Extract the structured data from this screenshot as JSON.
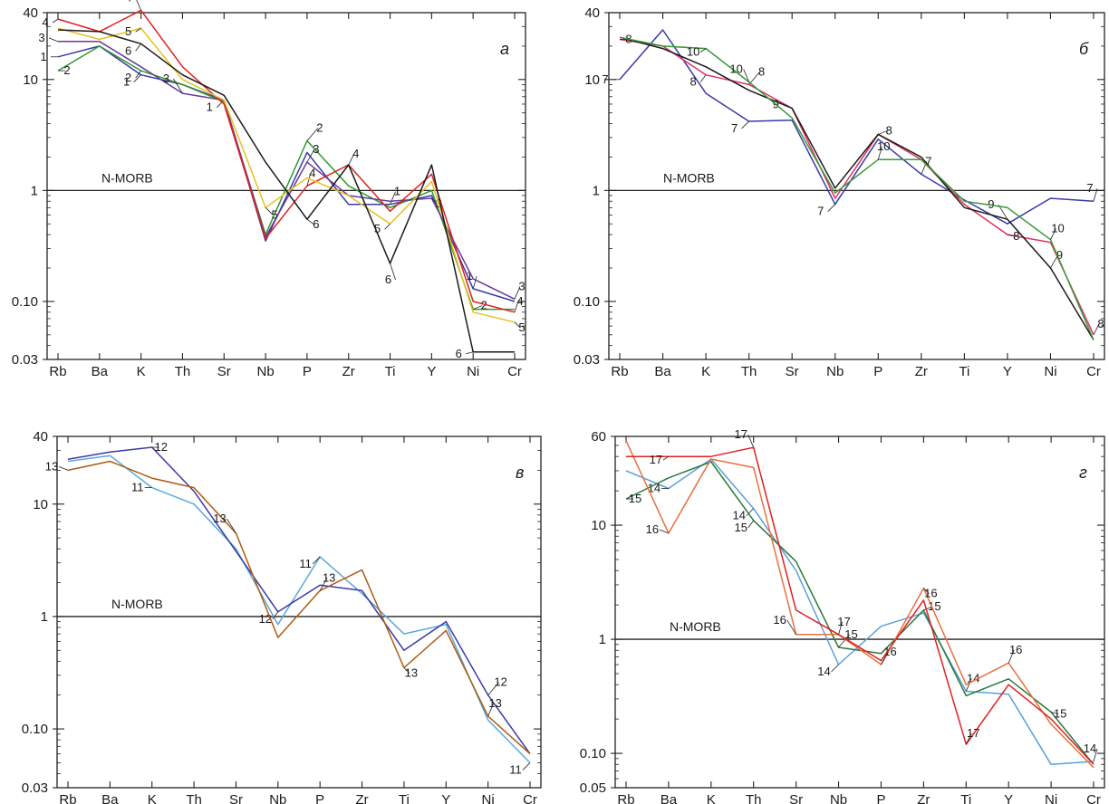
{
  "chart_data": [
    {
      "type": "line",
      "panel_label": "а",
      "y_scale": "log",
      "ylim": [
        0.03,
        40
      ],
      "y_ticks": [
        40,
        10,
        1,
        0.1,
        0.03
      ],
      "y_tick_labels": [
        "40",
        "10",
        "1",
        "0.10",
        "0.03"
      ],
      "categories": [
        "Rb",
        "Ba",
        "K",
        "Th",
        "Sr",
        "Nb",
        "P",
        "Zr",
        "Ti",
        "Y",
        "Ni",
        "Cr"
      ],
      "reference": {
        "label": "N-MORB",
        "value": 1
      },
      "series": [
        {
          "color": "#3a3aa8",
          "label_points": [
            {
              "label": "1",
              "i": 0
            },
            {
              "label": "1",
              "i": 2
            },
            {
              "label": "1",
              "i": 4
            },
            {
              "label": "1",
              "i": 8
            },
            {
              "label": "1",
              "i": 10
            }
          ],
          "values": [
            16,
            20,
            11,
            9,
            6.5,
            0.35,
            2.2,
            0.75,
            0.75,
            0.9,
            0.13,
            0.1
          ]
        },
        {
          "color": "#2e9a2e",
          "label_points": [
            {
              "label": "2",
              "i": 0
            },
            {
              "label": "2",
              "i": 2
            },
            {
              "label": "2",
              "i": 6
            },
            {
              "label": "2",
              "i": 10
            }
          ],
          "values": [
            12,
            20,
            12,
            9,
            6.3,
            0.4,
            2.8,
            1.1,
            0.7,
            1.0,
            0.085,
            0.085
          ]
        },
        {
          "color": "#6a3a9a",
          "label_points": [
            {
              "label": "3",
              "i": 0
            },
            {
              "label": "3",
              "i": 3
            },
            {
              "label": "3",
              "i": 6
            },
            {
              "label": "3",
              "i": 9
            },
            {
              "label": "3",
              "i": 11
            }
          ],
          "values": [
            22,
            22,
            13,
            7.5,
            6.5,
            0.38,
            1.8,
            0.9,
            0.8,
            0.85,
            0.16,
            0.105
          ]
        },
        {
          "color": "#e02020",
          "label_points": [
            {
              "label": "4",
              "i": 0
            },
            {
              "label": "4",
              "i": 2
            },
            {
              "label": "4",
              "i": 6
            },
            {
              "label": "4",
              "i": 7
            },
            {
              "label": "4",
              "i": 11
            }
          ],
          "values": [
            35,
            27,
            42,
            13,
            6,
            0.37,
            1.1,
            1.7,
            0.65,
            1.4,
            0.1,
            0.08
          ]
        },
        {
          "color": "#e8c020",
          "label_points": [
            {
              "label": "5",
              "i": 2
            },
            {
              "label": "5",
              "i": 5
            },
            {
              "label": "5",
              "i": 8
            },
            {
              "label": "5",
              "i": 11
            }
          ],
          "values": [
            29,
            23,
            29,
            10,
            6.5,
            0.7,
            1.3,
            0.9,
            0.5,
            1.2,
            0.08,
            0.065
          ]
        },
        {
          "color": "#1a1a1a",
          "label_points": [
            {
              "label": "6",
              "i": 2
            },
            {
              "label": "6",
              "i": 6
            },
            {
              "label": "6",
              "i": 8
            },
            {
              "label": "6",
              "i": 10
            }
          ],
          "values": [
            28,
            27,
            21,
            11,
            7.2,
            1.8,
            0.55,
            1.7,
            0.22,
            1.7,
            0.035,
            0.035
          ]
        }
      ]
    },
    {
      "type": "line",
      "panel_label": "б",
      "y_scale": "log",
      "ylim": [
        0.03,
        40
      ],
      "y_ticks": [
        40,
        10,
        1,
        0.1,
        0.03
      ],
      "y_tick_labels": [
        "40",
        "10",
        "1",
        "0.10",
        "0.03"
      ],
      "categories": [
        "Rb",
        "Ba",
        "K",
        "Th",
        "Sr",
        "Nb",
        "P",
        "Zr",
        "Ti",
        "Y",
        "Ni",
        "Cr"
      ],
      "reference": {
        "label": "N-MORB",
        "value": 1
      },
      "series": [
        {
          "color": "#3a3aa8",
          "label_points": [
            {
              "label": "7",
              "i": 0
            },
            {
              "label": "7",
              "i": 3
            },
            {
              "label": "7",
              "i": 5
            },
            {
              "label": "7",
              "i": 7
            },
            {
              "label": "7",
              "i": 11
            }
          ],
          "values": [
            10,
            28,
            7.5,
            4.2,
            4.3,
            0.75,
            2.9,
            1.4,
            0.82,
            0.5,
            0.85,
            0.8
          ]
        },
        {
          "color": "#e03060",
          "label_points": [
            {
              "label": "8",
              "i": 0
            },
            {
              "label": "8",
              "i": 2
            },
            {
              "label": "8",
              "i": 3
            },
            {
              "label": "8",
              "i": 6
            },
            {
              "label": "8",
              "i": 9
            },
            {
              "label": "8",
              "i": 11
            }
          ],
          "values": [
            23,
            20,
            11,
            9,
            5.5,
            0.85,
            3.2,
            1.9,
            0.75,
            0.4,
            0.34,
            0.05
          ]
        },
        {
          "color": "#1a1a1a",
          "label_points": [
            {
              "label": "9",
              "i": 4
            },
            {
              "label": "9",
              "i": 9
            },
            {
              "label": "9",
              "i": 10
            }
          ],
          "values": [
            24,
            19,
            13,
            8,
            5.5,
            1.05,
            3.2,
            2.0,
            0.7,
            0.55,
            0.2,
            0.045
          ]
        },
        {
          "color": "#3a9a3a",
          "label_points": [
            {
              "label": "10",
              "i": 2
            },
            {
              "label": "10",
              "i": 3
            },
            {
              "label": "10",
              "i": 6
            },
            {
              "label": "10",
              "i": 10
            }
          ],
          "values": [
            24,
            20,
            19,
            9.5,
            4.5,
            0.95,
            1.9,
            1.9,
            0.8,
            0.7,
            0.36,
            0.045
          ]
        }
      ]
    },
    {
      "type": "line",
      "panel_label": "в",
      "y_scale": "log",
      "ylim": [
        0.03,
        40
      ],
      "y_ticks": [
        40,
        10,
        1,
        0.1,
        0.03
      ],
      "y_tick_labels": [
        "40",
        "10",
        "1",
        "0.10",
        "0.03"
      ],
      "categories": [
        "Rb",
        "Ba",
        "K",
        "Th",
        "Sr",
        "Nb",
        "P",
        "Zr",
        "Ti",
        "Y",
        "Ni",
        "Cr"
      ],
      "reference": {
        "label": "N-MORB",
        "value": 1
      },
      "series": [
        {
          "color": "#5aaad8",
          "label_points": [
            {
              "label": "11",
              "i": 2
            },
            {
              "label": "11",
              "i": 6
            },
            {
              "label": "11",
              "i": 11
            }
          ],
          "values": [
            24,
            27,
            14,
            10,
            4.0,
            0.85,
            3.4,
            1.6,
            0.7,
            0.85,
            0.12,
            0.05
          ]
        },
        {
          "color": "#3a3aa8",
          "label_points": [
            {
              "label": "12",
              "i": 2
            },
            {
              "label": "12",
              "i": 5
            },
            {
              "label": "12",
              "i": 10
            }
          ],
          "values": [
            25,
            29,
            32,
            13,
            3.8,
            1.1,
            1.9,
            1.7,
            0.5,
            0.9,
            0.2,
            0.06
          ]
        },
        {
          "color": "#b05a10",
          "label_points": [
            {
              "label": "13",
              "i": 0
            },
            {
              "label": "13",
              "i": 4
            },
            {
              "label": "13",
              "i": 6
            },
            {
              "label": "13",
              "i": 8
            },
            {
              "label": "13",
              "i": 10
            }
          ],
          "values": [
            20,
            24,
            17,
            14,
            5.5,
            0.65,
            1.7,
            2.6,
            0.35,
            0.75,
            0.13,
            0.06
          ]
        }
      ]
    },
    {
      "type": "line",
      "panel_label": "г",
      "y_scale": "log",
      "ylim": [
        0.05,
        60
      ],
      "y_ticks": [
        60,
        10,
        1,
        0.1,
        0.05
      ],
      "y_tick_labels": [
        "60",
        "10",
        "1",
        "0.10",
        "0.05"
      ],
      "categories": [
        "Rb",
        "Ba",
        "K",
        "Th",
        "Sr",
        "Nb",
        "P",
        "Zr",
        "Ti",
        "Y",
        "Ni",
        "Cr"
      ],
      "reference": {
        "label": "N-MORB",
        "value": 1
      },
      "series": [
        {
          "color": "#5aa0d8",
          "label_points": [
            {
              "label": "14",
              "i": 1
            },
            {
              "label": "14",
              "i": 3
            },
            {
              "label": "14",
              "i": 5
            },
            {
              "label": "14",
              "i": 8
            },
            {
              "label": "14",
              "i": 11
            }
          ],
          "values": [
            30,
            21,
            38,
            14,
            4.0,
            0.6,
            1.3,
            1.7,
            0.35,
            0.33,
            0.08,
            0.085
          ]
        },
        {
          "color": "#2a7a3a",
          "label_points": [
            {
              "label": "15",
              "i": 0
            },
            {
              "label": "15",
              "i": 3
            },
            {
              "label": "15",
              "i": 5
            },
            {
              "label": "15",
              "i": 7
            },
            {
              "label": "15",
              "i": 10
            }
          ],
          "values": [
            17,
            26,
            36,
            11,
            4.8,
            0.85,
            0.75,
            1.8,
            0.32,
            0.45,
            0.23,
            0.08
          ]
        },
        {
          "color": "#e87040",
          "label_points": [
            {
              "label": "16",
              "i": 1
            },
            {
              "label": "16",
              "i": 4
            },
            {
              "label": "16",
              "i": 6
            },
            {
              "label": "16",
              "i": 7
            },
            {
              "label": "16",
              "i": 9
            }
          ],
          "values": [
            55,
            8.5,
            38,
            32,
            1.1,
            1.1,
            0.6,
            2.8,
            0.4,
            0.62,
            0.18,
            0.075
          ]
        },
        {
          "color": "#e02020",
          "label_points": [
            {
              "label": "17",
              "i": 1
            },
            {
              "label": "17",
              "i": 3
            },
            {
              "label": "17",
              "i": 5
            },
            {
              "label": "17",
              "i": 8
            }
          ],
          "values": [
            40,
            40,
            40,
            48,
            1.8,
            1.1,
            0.65,
            2.2,
            0.12,
            0.4,
            0.2,
            0.08
          ]
        }
      ]
    }
  ]
}
